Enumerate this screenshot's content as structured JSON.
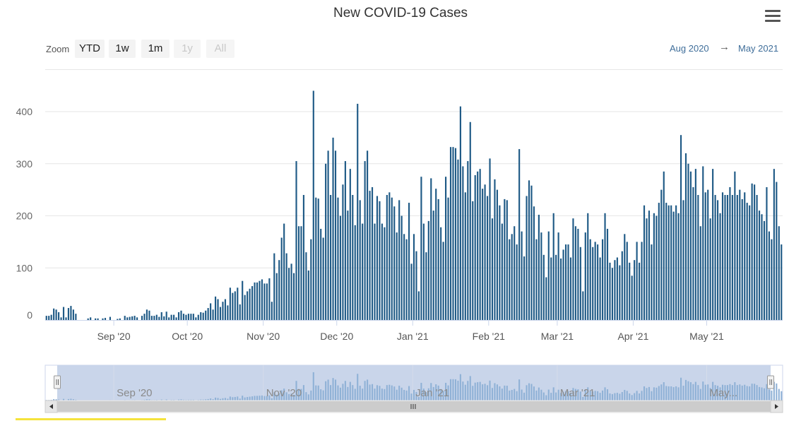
{
  "colors": {
    "bar": "#1f5a86",
    "grid": "#e6e6e6",
    "navigator_fill": "#c9d5ea",
    "navigator_bars": "#8fb1d6",
    "link": "#3f6e9a"
  },
  "toolbar": {
    "zoom_label": "Zoom",
    "buttons": [
      {
        "label": "YTD",
        "enabled": true
      },
      {
        "label": "1w",
        "enabled": true
      },
      {
        "label": "1m",
        "enabled": true
      },
      {
        "label": "1y",
        "enabled": false
      },
      {
        "label": "All",
        "enabled": false
      }
    ],
    "range_from": "Aug 2020",
    "range_arrow": "→",
    "range_to": "May 2021",
    "menu_icon": "hamburger-menu-icon"
  },
  "navigator": {
    "labels": [
      "Sep '20",
      "Nov '20",
      "Jan '21",
      "Mar '21",
      "May..."
    ],
    "scroll_left_icon": "chevron-left-icon",
    "scroll_right_icon": "chevron-right-icon",
    "grip_icon": "grip-icon"
  },
  "chart_data": {
    "type": "bar",
    "title": "New COVID-19 Cases",
    "xlabel": "",
    "ylabel": "",
    "ylim": [
      0,
      480
    ],
    "yticks": [
      0,
      100,
      200,
      300,
      400
    ],
    "start_date": "2020-08-04",
    "xtick_labels": [
      {
        "label": "Sep '20",
        "day": 28
      },
      {
        "label": "Oct '20",
        "day": 58
      },
      {
        "label": "Nov '20",
        "day": 89
      },
      {
        "label": "Dec '20",
        "day": 119
      },
      {
        "label": "Jan '21",
        "day": 150
      },
      {
        "label": "Feb '21",
        "day": 181
      },
      {
        "label": "Mar '21",
        "day": 209
      },
      {
        "label": "Apr '21",
        "day": 240
      },
      {
        "label": "May '21",
        "day": 270
      }
    ],
    "series": [
      {
        "name": "New Cases",
        "values": [
          8,
          8,
          10,
          22,
          20,
          15,
          5,
          25,
          5,
          23,
          27,
          20,
          12,
          0,
          0,
          0,
          0,
          3,
          5,
          0,
          3,
          3,
          0,
          3,
          4,
          0,
          6,
          0,
          0,
          2,
          3,
          0,
          8,
          5,
          6,
          7,
          8,
          5,
          0,
          8,
          12,
          20,
          18,
          8,
          8,
          10,
          6,
          15,
          7,
          16,
          5,
          10,
          10,
          5,
          15,
          18,
          12,
          10,
          12,
          12,
          12,
          5,
          10,
          15,
          14,
          18,
          23,
          32,
          20,
          45,
          40,
          25,
          35,
          40,
          28,
          62,
          52,
          55,
          62,
          30,
          75,
          48,
          55,
          60,
          65,
          72,
          72,
          75,
          78,
          70,
          70,
          80,
          35,
          128,
          90,
          115,
          158,
          185,
          128,
          100,
          108,
          90,
          305,
          180,
          180,
          240,
          130,
          95,
          155,
          440,
          235,
          233,
          175,
          158,
          300,
          325,
          240,
          350,
          325,
          235,
          200,
          260,
          305,
          210,
          290,
          240,
          182,
          415,
          230,
          185,
          305,
          325,
          248,
          255,
          185,
          238,
          228,
          185,
          178,
          240,
          245,
          235,
          218,
          168,
          230,
          200,
          165,
          155,
          225,
          108,
          165,
          132,
          55,
          275,
          185,
          130,
          190,
          272,
          210,
          252,
          232,
          178,
          150,
          275,
          235,
          332,
          332,
          330,
          308,
          410,
          295,
          245,
          305,
          380,
          228,
          278,
          285,
          290,
          252,
          260,
          238,
          310,
          195,
          270,
          250,
          220,
          185,
          232,
          230,
          155,
          165,
          180,
          145,
          328,
          170,
          122,
          238,
          268,
          258,
          218,
          155,
          202,
          168,
          125,
          82,
          170,
          120,
          205,
          125,
          168,
          118,
          135,
          145,
          145,
          120,
          195,
          180,
          175,
          140,
          55,
          168,
          205,
          155,
          140,
          150,
          145,
          120,
          155,
          205,
          175,
          110,
          100,
          115,
          120,
          105,
          132,
          165,
          150,
          110,
          85,
          115,
          150,
          110,
          150,
          220,
          195,
          210,
          145,
          205,
          200,
          225,
          250,
          285,
          225,
          220,
          220,
          208,
          220,
          205,
          355,
          230,
          320,
          300,
          285,
          255,
          290,
          240,
          180,
          295,
          245,
          250,
          195,
          290,
          240,
          230,
          205,
          245,
          240,
          240,
          255,
          240,
          285,
          240,
          250,
          232,
          245,
          225,
          220,
          262,
          260,
          240,
          210,
          203,
          190,
          255,
          170,
          155,
          290,
          265,
          180,
          145
        ]
      }
    ]
  }
}
